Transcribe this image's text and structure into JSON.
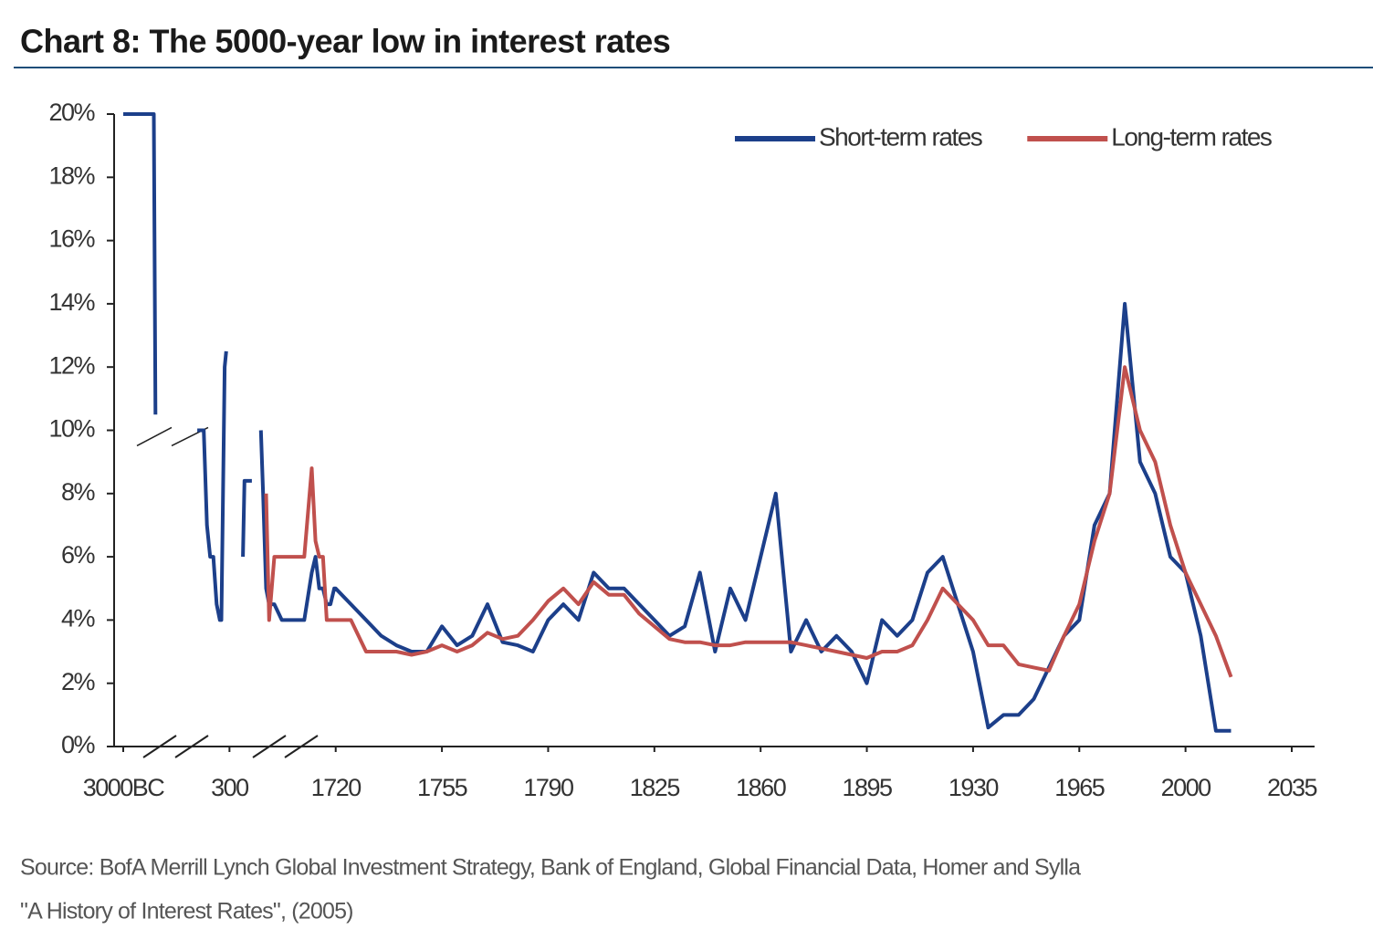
{
  "chart_data": {
    "type": "line",
    "title": "Chart 8: The 5000-year low in interest rates",
    "source": [
      "Source: BofA Merrill Lynch Global Investment Strategy, Bank of England, Global Financial Data, Homer and Sylla",
      "\"A History of Interest Rates\", (2005)"
    ],
    "legend": "upper right",
    "ylim": [
      0,
      20
    ],
    "yticks": [
      {
        "value": 0,
        "label": "0%"
      },
      {
        "value": 2,
        "label": "2%"
      },
      {
        "value": 4,
        "label": "4%"
      },
      {
        "value": 6,
        "label": "6%"
      },
      {
        "value": 8,
        "label": "8%"
      },
      {
        "value": 10,
        "label": "10%"
      },
      {
        "value": 12,
        "label": "12%"
      },
      {
        "value": 14,
        "label": "14%"
      },
      {
        "value": 16,
        "label": "16%"
      },
      {
        "value": 18,
        "label": "18%"
      },
      {
        "value": 20,
        "label": "20%"
      }
    ],
    "xlim": [
      -3000,
      2035
    ],
    "xticks": [
      {
        "value": -3000,
        "label": "3000BC"
      },
      300,
      1720,
      1755,
      1790,
      1825,
      1860,
      1895,
      1930,
      1965,
      2000,
      2035
    ],
    "x": [
      -3000,
      -2050,
      -2000,
      -1500,
      -700,
      -500,
      -400,
      -300,
      -200,
      -100,
      0,
      50,
      100,
      150,
      200,
      300,
      480,
      500,
      600,
      650,
      720,
      750,
      790,
      830,
      900,
      1000,
      1100,
      1200,
      1300,
      1400,
      1450,
      1500,
      1550,
      1600,
      1650,
      1700,
      1720,
      1725,
      1730,
      1735,
      1740,
      1745,
      1750,
      1755,
      1760,
      1765,
      1770,
      1775,
      1780,
      1785,
      1790,
      1795,
      1800,
      1805,
      1810,
      1815,
      1820,
      1825,
      1830,
      1835,
      1840,
      1845,
      1850,
      1855,
      1860,
      1865,
      1870,
      1875,
      1880,
      1885,
      1890,
      1895,
      1900,
      1905,
      1910,
      1915,
      1920,
      1925,
      1930,
      1935,
      1940,
      1945,
      1950,
      1955,
      1960,
      1965,
      1970,
      1975,
      1980,
      1985,
      1990,
      1995,
      2000,
      2005,
      2010,
      2015
    ],
    "series": [
      {
        "name": "Short-term rates",
        "color": "#1c3f8a",
        "values": [
          20,
          20,
          10.5,
          null,
          10,
          10,
          7,
          6,
          6,
          4.5,
          4,
          4,
          8,
          12,
          12.5,
          null,
          6,
          8.4,
          8.4,
          null,
          10,
          8,
          5,
          4.5,
          4.5,
          4,
          4,
          4,
          4,
          5.5,
          6,
          5,
          5,
          4.5,
          4.5,
          5,
          5,
          4.5,
          4,
          3.5,
          3.2,
          3,
          3,
          3.8,
          3.2,
          3.5,
          4.5,
          3.3,
          3.2,
          3,
          4,
          4.5,
          4,
          5.5,
          5,
          5,
          4.5,
          4,
          3.5,
          3.8,
          5.5,
          3,
          5,
          4,
          6,
          8,
          3,
          4,
          3,
          3.5,
          3,
          2,
          4,
          3.5,
          4,
          5.5,
          6,
          4.5,
          3,
          0.6,
          1,
          1,
          1.5,
          2.5,
          3.5,
          4,
          7,
          8,
          14,
          9,
          8,
          6,
          5.5,
          3.5,
          0.5,
          0.5
        ]
      },
      {
        "name": "Long-term rates",
        "color": "#c0504d",
        "values": [
          null,
          null,
          null,
          null,
          null,
          null,
          null,
          null,
          null,
          null,
          null,
          null,
          null,
          null,
          null,
          null,
          null,
          null,
          null,
          null,
          null,
          null,
          8,
          4,
          6,
          6,
          6,
          6,
          6,
          8.8,
          6.5,
          6,
          6,
          4,
          4,
          4,
          4,
          4,
          3,
          3,
          3,
          2.9,
          3,
          3.2,
          3,
          3.2,
          3.6,
          3.4,
          3.5,
          4,
          4.6,
          5,
          4.5,
          5.2,
          4.8,
          4.8,
          4.2,
          3.8,
          3.4,
          3.3,
          3.3,
          3.2,
          3.2,
          3.3,
          3.3,
          3.3,
          3.3,
          3.2,
          3.1,
          3,
          2.9,
          2.8,
          3,
          3,
          3.2,
          4,
          5,
          4.5,
          4,
          3.2,
          3.2,
          2.6,
          2.5,
          2.4,
          3.5,
          4.5,
          6.5,
          8,
          12,
          10,
          9,
          7,
          5.5,
          4.5,
          3.5,
          2.2
        ]
      }
    ]
  }
}
